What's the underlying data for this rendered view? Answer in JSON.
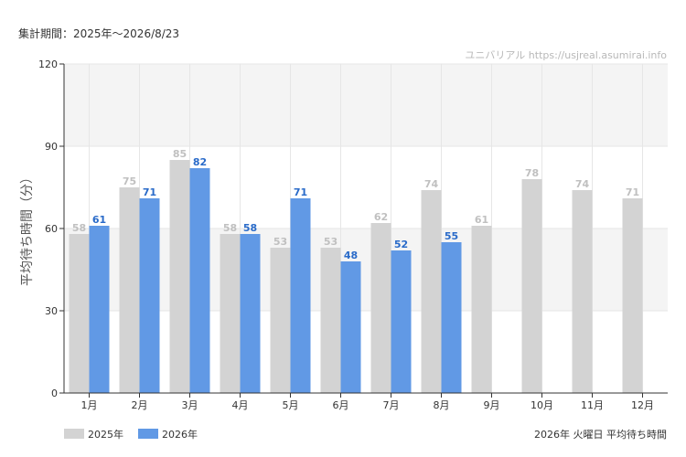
{
  "header": {
    "period": "集計期間：2025年～2026/8/23",
    "watermark": "ユニバリアル https://usjreal.asumirai.info"
  },
  "footer": {
    "caption": "2026年 火曜日 平均待ち時間"
  },
  "colors": {
    "series_2025": "#d3d3d3",
    "series_2026": "#6199e5",
    "label_2025": "#c0c0c0",
    "label_2026": "#2a6bc9",
    "band": "#f4f4f4",
    "grid": "#e6e6e6",
    "axis": "#333333"
  },
  "chart_data": {
    "type": "bar",
    "title": "",
    "xlabel": "",
    "ylabel": "平均待ち時間（分）",
    "ylim": [
      0,
      120
    ],
    "yticks": [
      0,
      30,
      60,
      90,
      120
    ],
    "grid": true,
    "legend_position": "bottom-left",
    "categories": [
      "1月",
      "2月",
      "3月",
      "4月",
      "5月",
      "6月",
      "7月",
      "8月",
      "9月",
      "10月",
      "11月",
      "12月"
    ],
    "series": [
      {
        "name": "2025年",
        "values": [
          58,
          75,
          85,
          58,
          53,
          53,
          62,
          74,
          61,
          78,
          74,
          71
        ]
      },
      {
        "name": "2026年",
        "values": [
          61,
          71,
          82,
          58,
          71,
          48,
          52,
          55,
          null,
          null,
          null,
          null
        ]
      }
    ]
  }
}
